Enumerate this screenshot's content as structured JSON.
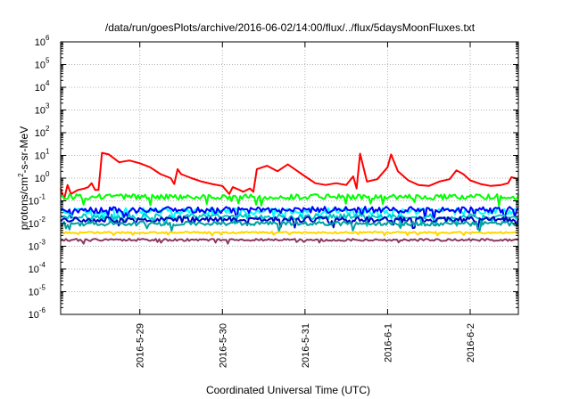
{
  "chart_data": {
    "type": "line",
    "title": "/data/run/goesPlots/archive/2016-06-02/14:00/flux/../flux/5daysMoonFluxes.txt",
    "xlabel": "Coordinated Universal Time (UTC)",
    "ylabel": {
      "prefix": "protons/cm",
      "superscript": "2",
      "suffix": "-s-sr-MeV"
    },
    "yscale": "log",
    "ylim_exponents": [
      -6,
      6
    ],
    "y_ticks": [
      {
        "base": "10",
        "exp": "6"
      },
      {
        "base": "10",
        "exp": "5"
      },
      {
        "base": "10",
        "exp": "4"
      },
      {
        "base": "10",
        "exp": "3"
      },
      {
        "base": "10",
        "exp": "2"
      },
      {
        "base": "10",
        "exp": "1"
      },
      {
        "base": "10",
        "exp": "0"
      },
      {
        "base": "10",
        "exp": "-1"
      },
      {
        "base": "10",
        "exp": "-2"
      },
      {
        "base": "10",
        "exp": "-3"
      },
      {
        "base": "10",
        "exp": "-4"
      },
      {
        "base": "10",
        "exp": "-5"
      },
      {
        "base": "10",
        "exp": "-6"
      }
    ],
    "xlim": [
      "2016-05-28T01:00",
      "2016-06-02T14:00"
    ],
    "x_ticks": [
      {
        "label": "2016-5-29",
        "time": "2016-05-29T00:00"
      },
      {
        "label": "2016-5-30",
        "time": "2016-05-30T00:00"
      },
      {
        "label": "2016-5-31",
        "time": "2016-05-31T00:00"
      },
      {
        "label": "2016-6-1",
        "time": "2016-06-01T00:00"
      },
      {
        "label": "2016-6-2",
        "time": "2016-06-02T00:00"
      }
    ],
    "grid": true,
    "series": [
      {
        "color": "#ff0000",
        "points": [
          [
            "2016-05-28T01:00",
            0.35
          ],
          [
            "2016-05-28T02:00",
            0.12
          ],
          [
            "2016-05-28T03:00",
            0.5
          ],
          [
            "2016-05-28T04:00",
            0.2
          ],
          [
            "2016-05-28T06:00",
            0.3
          ],
          [
            "2016-05-28T08:00",
            0.35
          ],
          [
            "2016-05-28T09:00",
            0.4
          ],
          [
            "2016-05-28T10:00",
            0.6
          ],
          [
            "2016-05-28T11:00",
            0.3
          ],
          [
            "2016-05-28T12:00",
            0.3
          ],
          [
            "2016-05-28T13:00",
            13
          ],
          [
            "2016-05-28T15:00",
            11
          ],
          [
            "2016-05-28T18:00",
            5
          ],
          [
            "2016-05-28T21:00",
            6
          ],
          [
            "2016-05-29T00:00",
            4.5
          ],
          [
            "2016-05-29T03:00",
            3
          ],
          [
            "2016-05-29T06:00",
            1.5
          ],
          [
            "2016-05-29T09:00",
            1.0
          ],
          [
            "2016-05-29T10:00",
            0.55
          ],
          [
            "2016-05-29T11:00",
            2.5
          ],
          [
            "2016-05-29T12:00",
            1.5
          ],
          [
            "2016-05-29T15:00",
            1.0
          ],
          [
            "2016-05-29T18:00",
            0.7
          ],
          [
            "2016-05-29T21:00",
            0.55
          ],
          [
            "2016-05-30T00:00",
            0.45
          ],
          [
            "2016-05-30T02:00",
            0.2
          ],
          [
            "2016-05-30T03:00",
            0.4
          ],
          [
            "2016-05-30T05:00",
            0.3
          ],
          [
            "2016-05-30T06:00",
            0.25
          ],
          [
            "2016-05-30T08:00",
            0.35
          ],
          [
            "2016-05-30T09:00",
            0.25
          ],
          [
            "2016-05-30T10:00",
            2.5
          ],
          [
            "2016-05-30T13:00",
            3.5
          ],
          [
            "2016-05-30T16:00",
            2.0
          ],
          [
            "2016-05-30T19:00",
            4.0
          ],
          [
            "2016-05-30T21:00",
            2.5
          ],
          [
            "2016-05-31T00:00",
            1.2
          ],
          [
            "2016-05-31T03:00",
            0.6
          ],
          [
            "2016-05-31T06:00",
            0.5
          ],
          [
            "2016-05-31T09:00",
            0.6
          ],
          [
            "2016-05-31T12:00",
            0.5
          ],
          [
            "2016-05-31T14:00",
            1.2
          ],
          [
            "2016-05-31T15:00",
            0.35
          ],
          [
            "2016-05-31T16:00",
            12
          ],
          [
            "2016-05-31T18:00",
            0.7
          ],
          [
            "2016-05-31T21:00",
            0.9
          ],
          [
            "2016-06-01T00:00",
            3.0
          ],
          [
            "2016-06-01T01:00",
            11
          ],
          [
            "2016-06-01T03:00",
            2.0
          ],
          [
            "2016-06-01T06:00",
            0.8
          ],
          [
            "2016-06-01T09:00",
            0.5
          ],
          [
            "2016-06-01T12:00",
            0.45
          ],
          [
            "2016-06-01T15:00",
            0.7
          ],
          [
            "2016-06-01T18:00",
            0.9
          ],
          [
            "2016-06-01T20:00",
            2.2
          ],
          [
            "2016-06-01T22:00",
            1.5
          ],
          [
            "2016-06-02T00:00",
            0.8
          ],
          [
            "2016-06-02T03:00",
            0.55
          ],
          [
            "2016-06-02T06:00",
            0.45
          ],
          [
            "2016-06-02T09:00",
            0.5
          ],
          [
            "2016-06-02T11:00",
            0.6
          ],
          [
            "2016-06-02T12:00",
            1.1
          ],
          [
            "2016-06-02T14:00",
            0.9
          ]
        ]
      },
      {
        "color": "#00ff00",
        "level": 0.15,
        "noise": 0.12
      },
      {
        "color": "#00ffff",
        "level": 0.035,
        "noise": 0.14
      },
      {
        "color": "#0000ff",
        "level": 0.04,
        "noise": 0.14
      },
      {
        "color": "#00c8c8",
        "level": 0.02,
        "noise": 0.12
      },
      {
        "color": "#0000c0",
        "level": 0.015,
        "noise": 0.12
      },
      {
        "color": "#00a0a0",
        "level": 0.01,
        "noise": 0.1
      },
      {
        "color": "#ffd700",
        "level": 0.004,
        "noise": 0.04
      },
      {
        "color": "#8b3a62",
        "level": 0.0019,
        "noise": 0.05
      }
    ]
  }
}
